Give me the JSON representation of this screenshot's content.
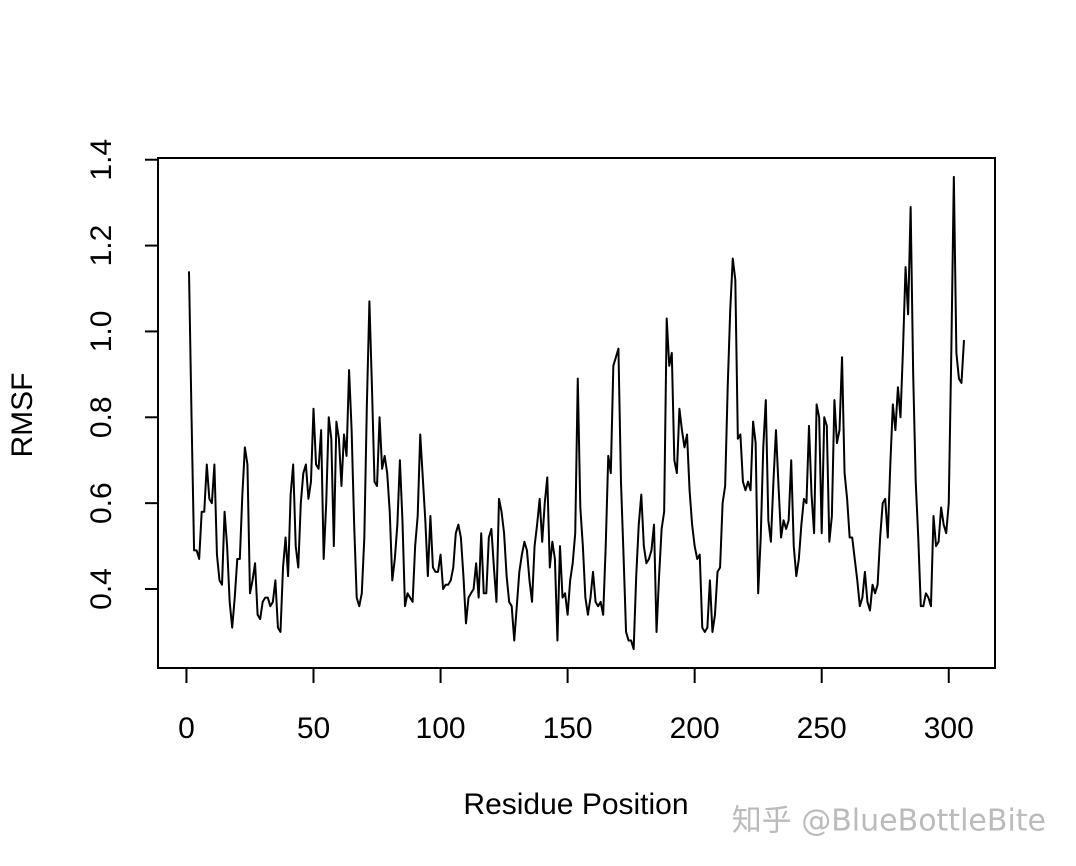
{
  "chart_data": {
    "type": "line",
    "xlabel": "Residue Position",
    "ylabel": "RMSF",
    "watermark": "知乎 @BlueBottleBite",
    "x": [
      1,
      2,
      3,
      4,
      5,
      6,
      7,
      8,
      9,
      10,
      11,
      12,
      13,
      14,
      15,
      16,
      17,
      18,
      19,
      20,
      21,
      22,
      23,
      24,
      25,
      26,
      27,
      28,
      29,
      30,
      31,
      32,
      33,
      34,
      35,
      36,
      37,
      38,
      39,
      40,
      41,
      42,
      43,
      44,
      45,
      46,
      47,
      48,
      49,
      50,
      51,
      52,
      53,
      54,
      55,
      56,
      57,
      58,
      59,
      60,
      61,
      62,
      63,
      64,
      65,
      66,
      67,
      68,
      69,
      70,
      71,
      72,
      73,
      74,
      75,
      76,
      77,
      78,
      79,
      80,
      81,
      82,
      83,
      84,
      85,
      86,
      87,
      88,
      89,
      90,
      91,
      92,
      93,
      94,
      95,
      96,
      97,
      98,
      99,
      100,
      101,
      102,
      103,
      104,
      105,
      106,
      107,
      108,
      109,
      110,
      111,
      112,
      113,
      114,
      115,
      116,
      117,
      118,
      119,
      120,
      121,
      122,
      123,
      124,
      125,
      126,
      127,
      128,
      129,
      130,
      131,
      132,
      133,
      134,
      135,
      136,
      137,
      138,
      139,
      140,
      141,
      142,
      143,
      144,
      145,
      146,
      147,
      148,
      149,
      150,
      151,
      152,
      153,
      154,
      155,
      156,
      157,
      158,
      159,
      160,
      161,
      162,
      163,
      164,
      165,
      166,
      167,
      168,
      169,
      170,
      171,
      172,
      173,
      174,
      175,
      176,
      177,
      178,
      179,
      180,
      181,
      182,
      183,
      184,
      185,
      186,
      187,
      188,
      189,
      190,
      191,
      192,
      193,
      194,
      195,
      196,
      197,
      198,
      199,
      200,
      201,
      202,
      203,
      204,
      205,
      206,
      207,
      208,
      209,
      210,
      211,
      212,
      213,
      214,
      215,
      216,
      217,
      218,
      219,
      220,
      221,
      222,
      223,
      224,
      225,
      226,
      227,
      228,
      229,
      230,
      231,
      232,
      233,
      234,
      235,
      236,
      237,
      238,
      239,
      240,
      241,
      242,
      243,
      244,
      245,
      246,
      247,
      248,
      249,
      250,
      251,
      252,
      253,
      254,
      255,
      256,
      257,
      258,
      259,
      260,
      261,
      262,
      263,
      264,
      265,
      266,
      267,
      268,
      269,
      270,
      271,
      272,
      273,
      274,
      275,
      276,
      277,
      278,
      279,
      280,
      281,
      282,
      283,
      284,
      285,
      286,
      287,
      288,
      289,
      290,
      291,
      292,
      293,
      294,
      295,
      296,
      297,
      298,
      299,
      300,
      301,
      302,
      303,
      304,
      305,
      306
    ],
    "values": [
      1.14,
      0.8,
      0.49,
      0.49,
      0.47,
      0.58,
      0.58,
      0.69,
      0.61,
      0.6,
      0.69,
      0.48,
      0.42,
      0.41,
      0.58,
      0.5,
      0.37,
      0.31,
      0.38,
      0.47,
      0.47,
      0.62,
      0.73,
      0.69,
      0.39,
      0.42,
      0.46,
      0.34,
      0.33,
      0.37,
      0.38,
      0.38,
      0.36,
      0.37,
      0.42,
      0.31,
      0.3,
      0.45,
      0.52,
      0.43,
      0.62,
      0.69,
      0.5,
      0.45,
      0.6,
      0.67,
      0.69,
      0.61,
      0.65,
      0.82,
      0.69,
      0.68,
      0.77,
      0.47,
      0.6,
      0.8,
      0.75,
      0.5,
      0.79,
      0.75,
      0.64,
      0.76,
      0.71,
      0.91,
      0.77,
      0.55,
      0.38,
      0.36,
      0.39,
      0.52,
      0.83,
      1.07,
      0.87,
      0.65,
      0.64,
      0.8,
      0.68,
      0.71,
      0.67,
      0.58,
      0.42,
      0.47,
      0.55,
      0.7,
      0.56,
      0.36,
      0.39,
      0.38,
      0.37,
      0.5,
      0.57,
      0.76,
      0.66,
      0.56,
      0.43,
      0.57,
      0.45,
      0.44,
      0.44,
      0.48,
      0.4,
      0.41,
      0.41,
      0.42,
      0.45,
      0.53,
      0.55,
      0.52,
      0.43,
      0.32,
      0.38,
      0.39,
      0.4,
      0.46,
      0.38,
      0.53,
      0.39,
      0.39,
      0.52,
      0.54,
      0.45,
      0.37,
      0.61,
      0.58,
      0.53,
      0.43,
      0.37,
      0.36,
      0.28,
      0.36,
      0.44,
      0.48,
      0.51,
      0.49,
      0.42,
      0.37,
      0.5,
      0.55,
      0.61,
      0.51,
      0.6,
      0.66,
      0.45,
      0.51,
      0.47,
      0.28,
      0.5,
      0.38,
      0.39,
      0.34,
      0.42,
      0.46,
      0.53,
      0.89,
      0.59,
      0.5,
      0.38,
      0.34,
      0.38,
      0.44,
      0.37,
      0.36,
      0.37,
      0.34,
      0.5,
      0.71,
      0.67,
      0.92,
      0.94,
      0.96,
      0.65,
      0.48,
      0.3,
      0.28,
      0.28,
      0.26,
      0.43,
      0.55,
      0.62,
      0.5,
      0.46,
      0.47,
      0.49,
      0.55,
      0.3,
      0.43,
      0.54,
      0.58,
      1.03,
      0.92,
      0.95,
      0.7,
      0.67,
      0.82,
      0.77,
      0.73,
      0.76,
      0.63,
      0.55,
      0.5,
      0.47,
      0.48,
      0.31,
      0.3,
      0.31,
      0.42,
      0.3,
      0.34,
      0.44,
      0.45,
      0.6,
      0.64,
      0.87,
      1.05,
      1.17,
      1.12,
      0.75,
      0.76,
      0.65,
      0.63,
      0.65,
      0.63,
      0.79,
      0.74,
      0.39,
      0.52,
      0.73,
      0.84,
      0.56,
      0.51,
      0.65,
      0.77,
      0.64,
      0.52,
      0.56,
      0.54,
      0.56,
      0.7,
      0.5,
      0.43,
      0.47,
      0.55,
      0.61,
      0.6,
      0.78,
      0.62,
      0.53,
      0.83,
      0.8,
      0.53,
      0.8,
      0.78,
      0.51,
      0.57,
      0.84,
      0.74,
      0.77,
      0.94,
      0.67,
      0.61,
      0.52,
      0.52,
      0.47,
      0.42,
      0.36,
      0.38,
      0.44,
      0.37,
      0.35,
      0.41,
      0.39,
      0.41,
      0.52,
      0.6,
      0.61,
      0.52,
      0.69,
      0.83,
      0.77,
      0.87,
      0.8,
      0.96,
      1.15,
      1.04,
      1.29,
      0.9,
      0.65,
      0.52,
      0.36,
      0.36,
      0.39,
      0.38,
      0.36,
      0.57,
      0.5,
      0.51,
      0.59,
      0.55,
      0.53,
      0.6,
      0.95,
      1.36,
      0.95,
      0.89,
      0.88,
      0.98
    ],
    "color": "#000000",
    "xlim": [
      -11.2,
      318.2
    ],
    "ylim": [
      0.216,
      1.404
    ],
    "xticks": [
      0,
      50,
      100,
      150,
      200,
      250,
      300
    ],
    "yticks": [
      0.4,
      0.6,
      0.8,
      1.0,
      1.2,
      1.4
    ],
    "grid": false
  }
}
